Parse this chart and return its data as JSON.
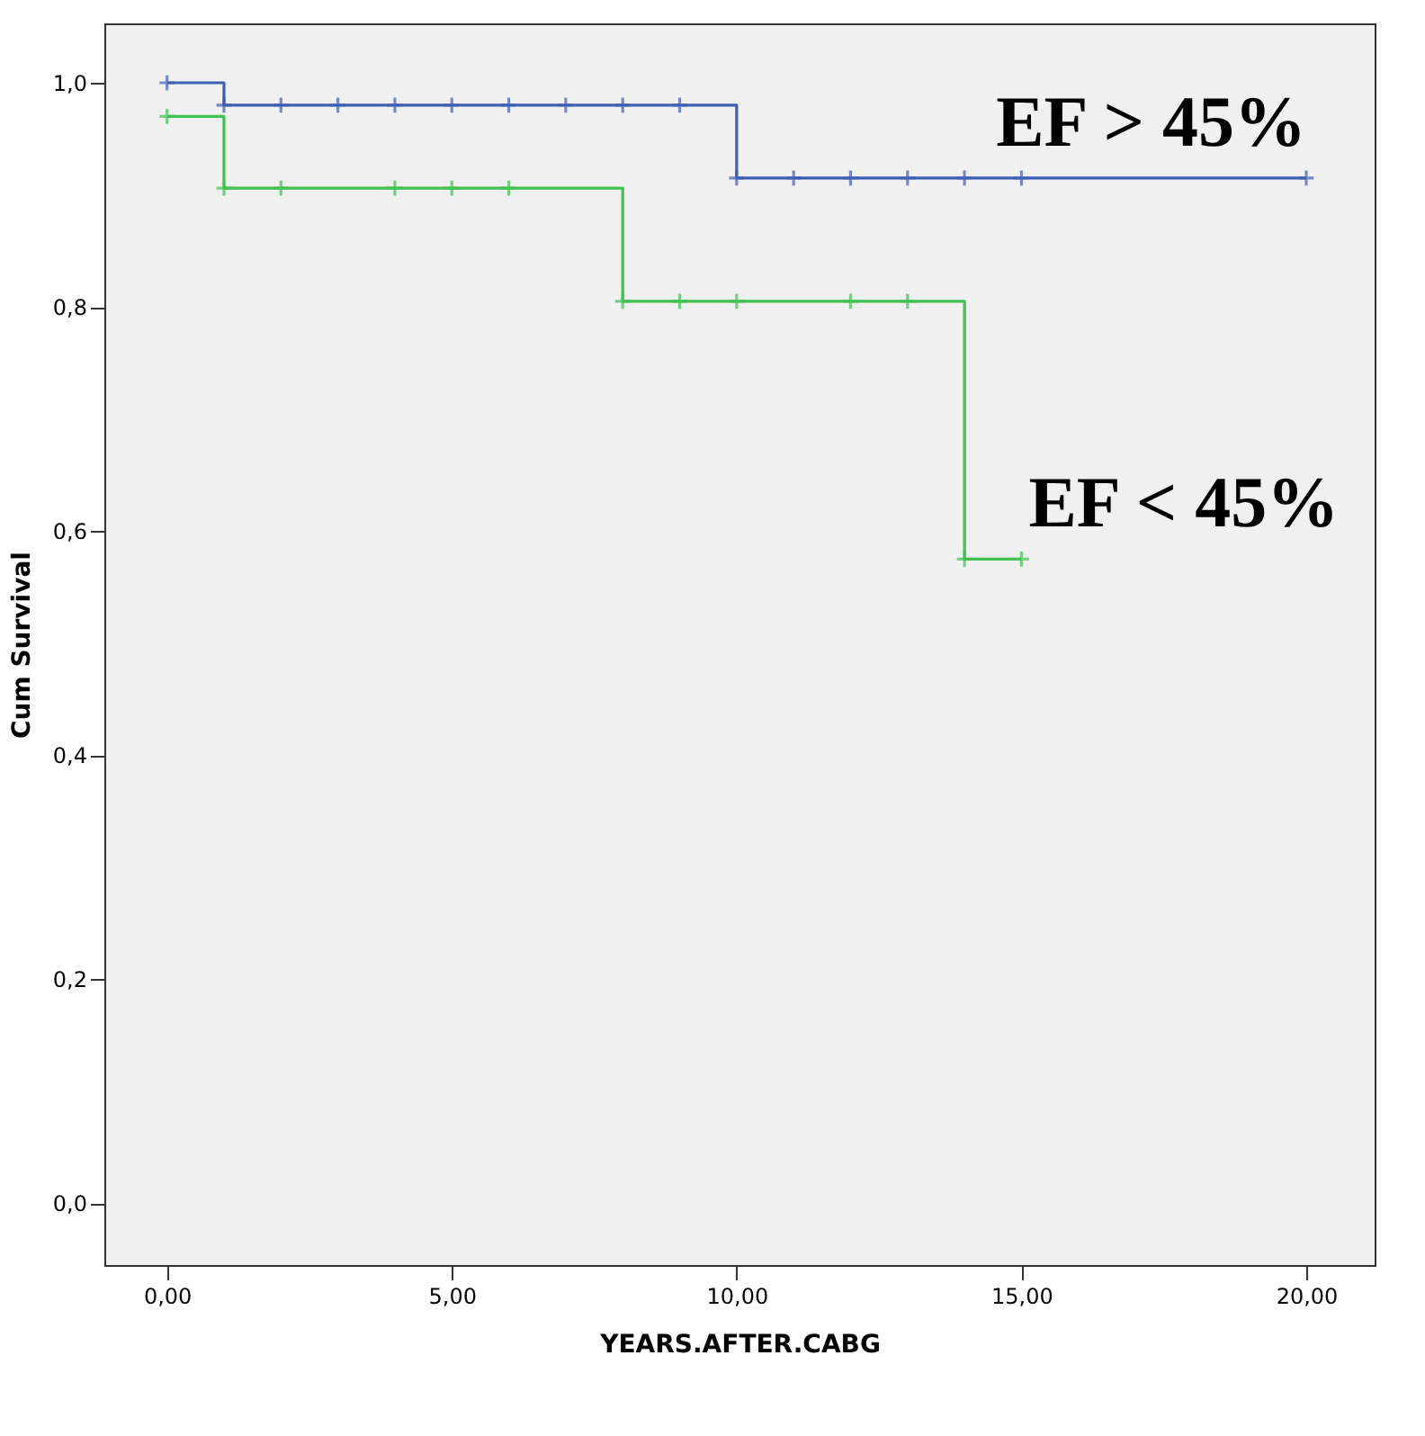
{
  "chart_data": {
    "type": "step",
    "xlabel": "YEARS.AFTER.CABG",
    "ylabel": "Cum Survival",
    "xlim": [
      -1.1,
      21.2
    ],
    "ylim": [
      -0.055,
      1.053
    ],
    "xticks": [
      {
        "value": 0,
        "label": "0,00"
      },
      {
        "value": 5,
        "label": "5,00"
      },
      {
        "value": 10,
        "label": "10,00"
      },
      {
        "value": 15,
        "label": "15,00"
      },
      {
        "value": 20,
        "label": "20,00"
      }
    ],
    "yticks": [
      {
        "value": 0,
        "label": "0,0"
      },
      {
        "value": 0.2,
        "label": "0,2"
      },
      {
        "value": 0.4,
        "label": "0,4"
      },
      {
        "value": 0.6,
        "label": "0,6"
      },
      {
        "value": 0.8,
        "label": "0,8"
      },
      {
        "value": 1.0,
        "label": "1,0"
      }
    ],
    "grid": false,
    "marker": "cross",
    "line_style": "solid",
    "series": [
      {
        "name": "EF > 45%",
        "color": "#3f5fb5",
        "x": [
          0,
          1,
          2,
          3,
          4,
          5,
          6,
          7,
          8,
          9,
          10,
          11,
          12,
          13,
          14,
          15,
          20
        ],
        "values": [
          1.0,
          0.98,
          0.98,
          0.98,
          0.98,
          0.98,
          0.98,
          0.98,
          0.98,
          0.98,
          0.915,
          0.915,
          0.915,
          0.915,
          0.915,
          0.915,
          0.915
        ]
      },
      {
        "name": "EF < 45%",
        "color": "#3fc24f",
        "x": [
          0,
          1,
          2,
          4,
          5,
          6,
          8,
          9,
          10,
          12,
          13,
          14,
          15
        ],
        "values": [
          0.97,
          0.906,
          0.906,
          0.906,
          0.906,
          0.906,
          0.805,
          0.805,
          0.805,
          0.805,
          0.805,
          0.575,
          0.575
        ]
      }
    ]
  }
}
